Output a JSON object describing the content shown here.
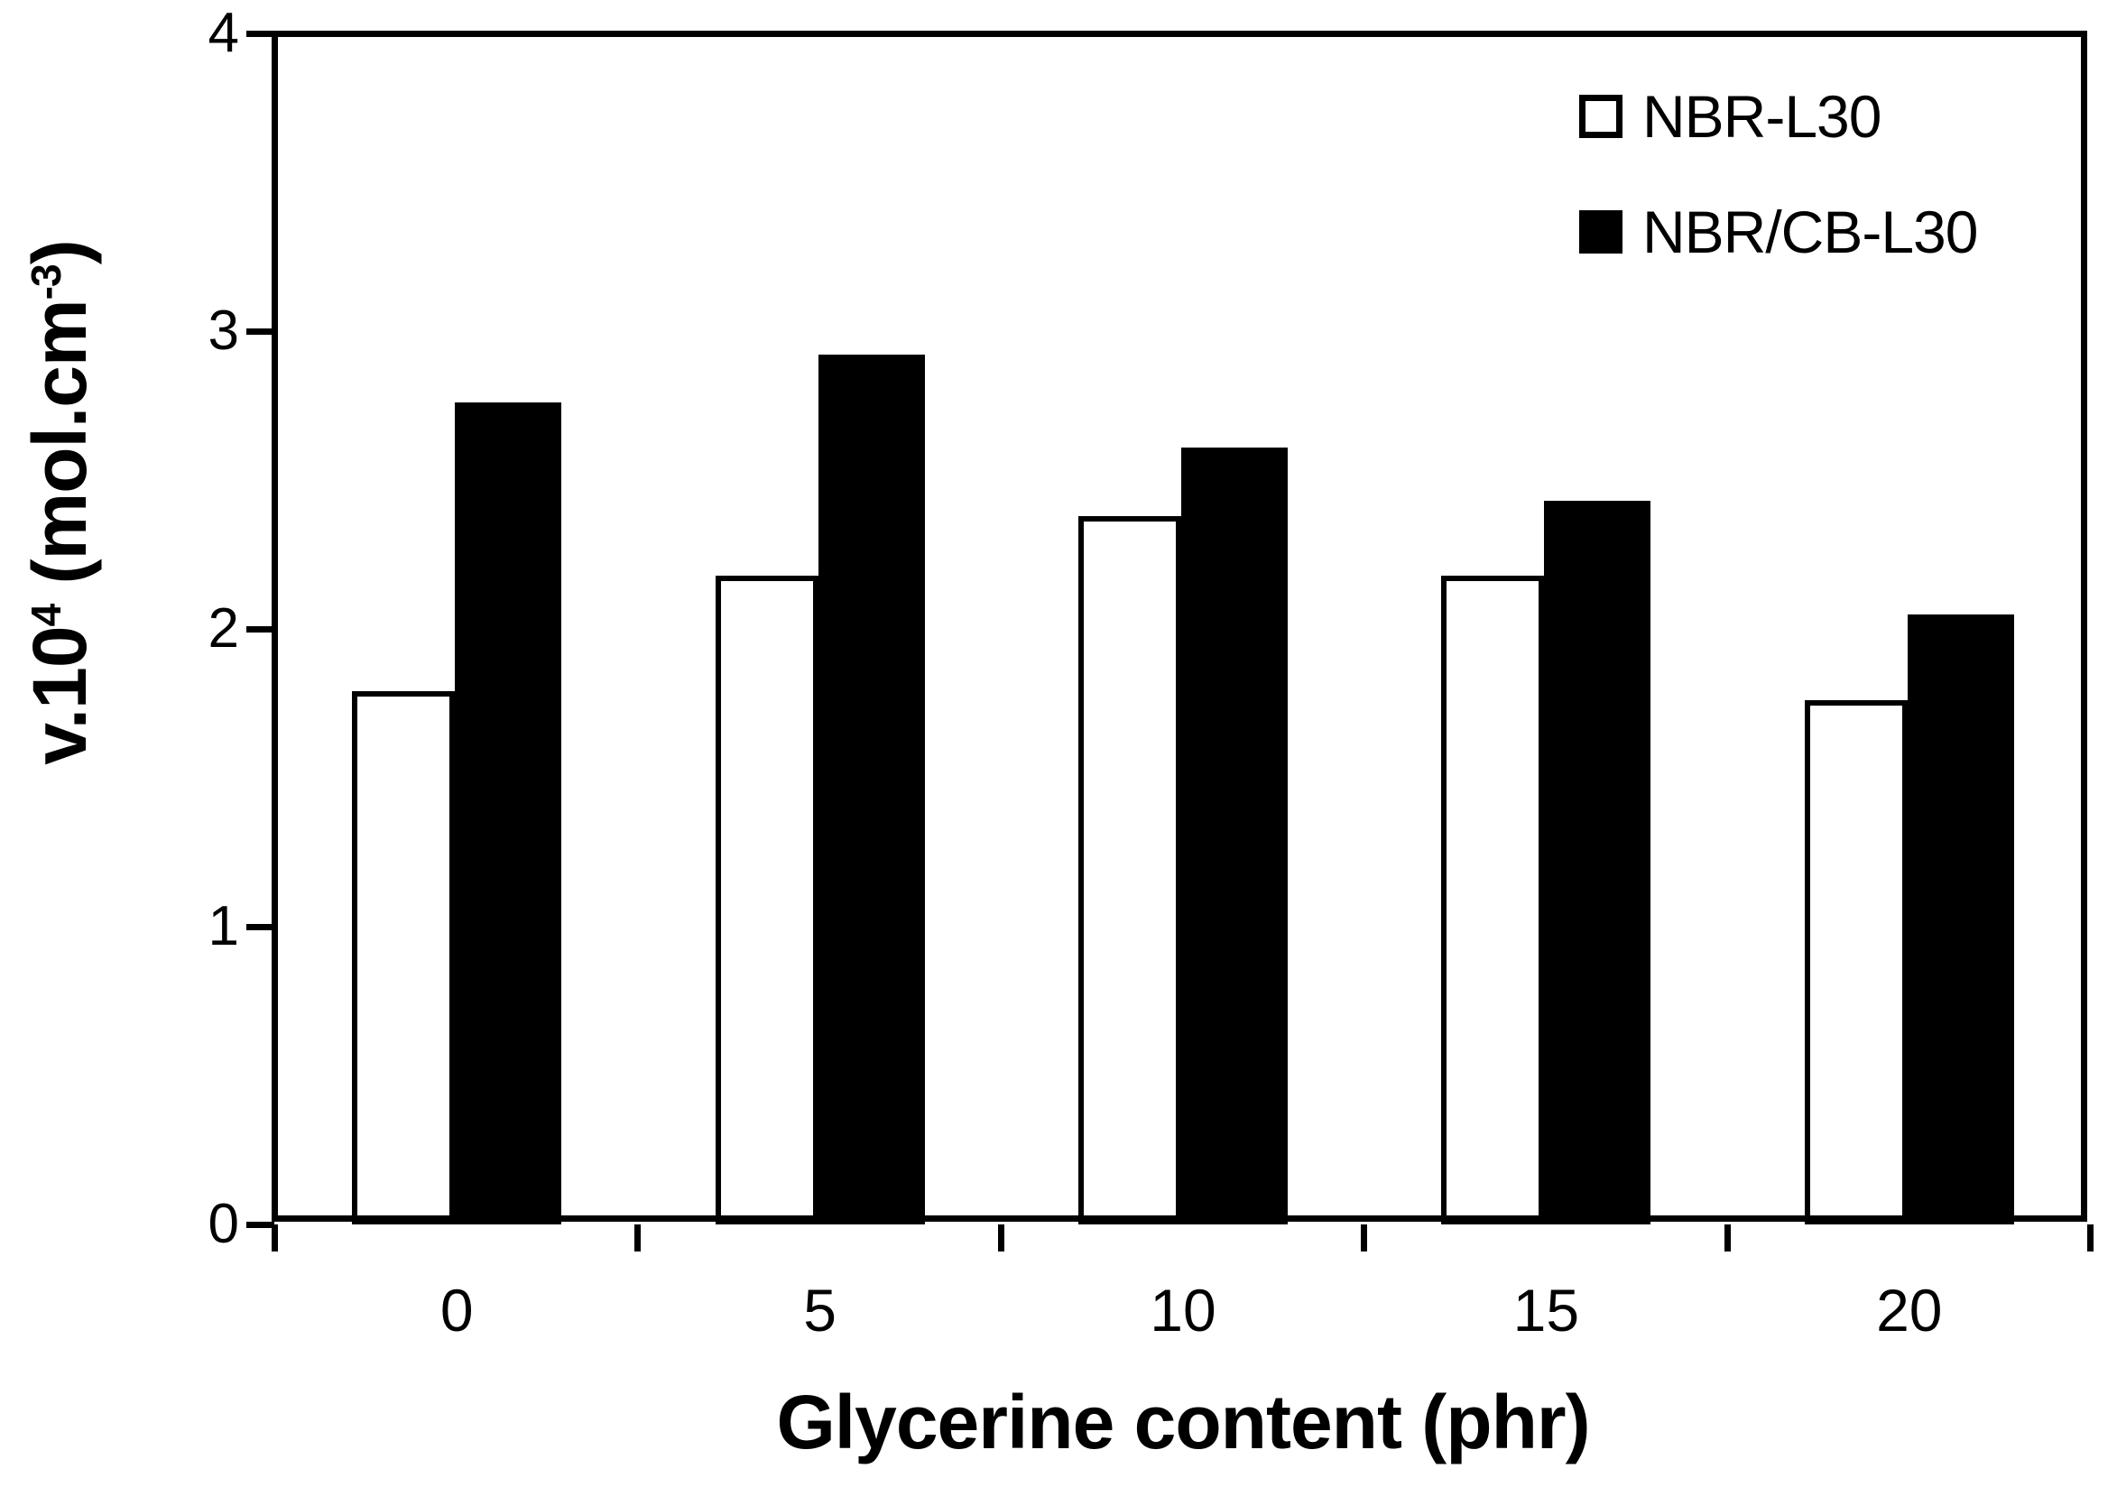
{
  "chart_data": {
    "type": "bar",
    "title": "",
    "xlabel": "Glycerine content (phr)",
    "ylabel_text": "v.10^4 (mol.cm^-3)",
    "ylabel_parts": {
      "prefix": "v.10",
      "sup1": "4",
      "mid": " (mol.cm",
      "sup2": "-3",
      "suffix": ")"
    },
    "categories": [
      "0",
      "5",
      "10",
      "15",
      "20"
    ],
    "series": [
      {
        "name": "NBR-L30",
        "style": "open",
        "fill": "#ffffff",
        "outline": "#000000",
        "values": [
          1.79,
          2.18,
          2.38,
          2.18,
          1.76
        ]
      },
      {
        "name": "NBR/CB-L30",
        "style": "filled",
        "fill": "#000000",
        "outline": "#000000",
        "values": [
          2.76,
          2.92,
          2.61,
          2.43,
          2.05
        ]
      }
    ],
    "ylim": [
      0,
      4
    ],
    "yticks": [
      0,
      1,
      2,
      3,
      4
    ],
    "grid": false,
    "legend_position": "top-right"
  },
  "legend": {
    "items": [
      {
        "label": "NBR-L30",
        "swatch": "open-square"
      },
      {
        "label": "NBR/CB-L30",
        "swatch": "filled-square"
      }
    ]
  },
  "colors": {
    "background": "#ffffff",
    "axis": "#000000",
    "bar_open_fill": "#ffffff",
    "bar_filled_fill": "#000000",
    "bar_outline": "#000000",
    "text": "#000000"
  }
}
